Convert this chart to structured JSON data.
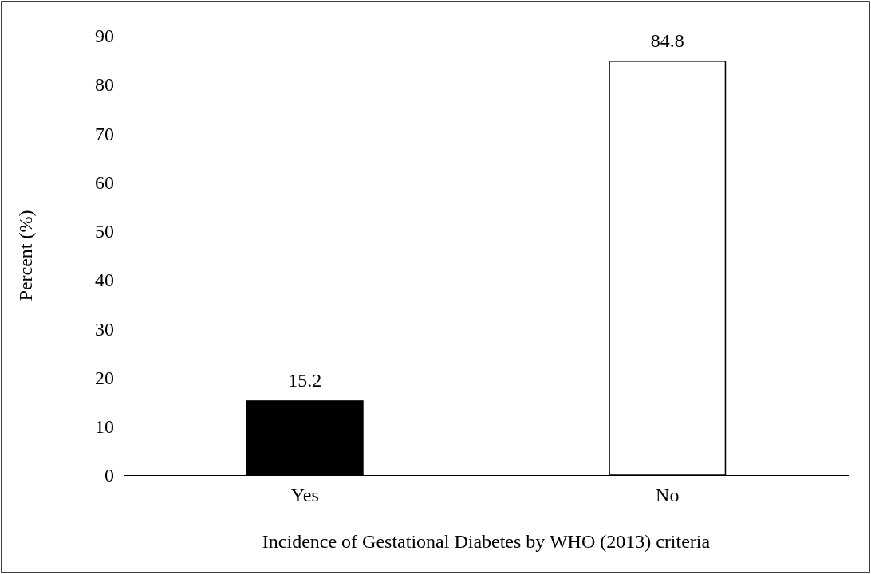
{
  "chart_data": {
    "type": "bar",
    "xlabel": "Incidence of Gestational Diabetes by WHO (2013) criteria",
    "ylabel": "Percent (%)",
    "categories": [
      "Yes",
      "No"
    ],
    "values": [
      15.2,
      84.8
    ],
    "colors": [
      "#000000",
      "#ffffff"
    ],
    "ylim": [
      0,
      90
    ],
    "yticks": [
      0,
      10,
      20,
      30,
      40,
      50,
      60,
      70,
      80,
      90
    ],
    "data_labels": true,
    "grid": false
  }
}
